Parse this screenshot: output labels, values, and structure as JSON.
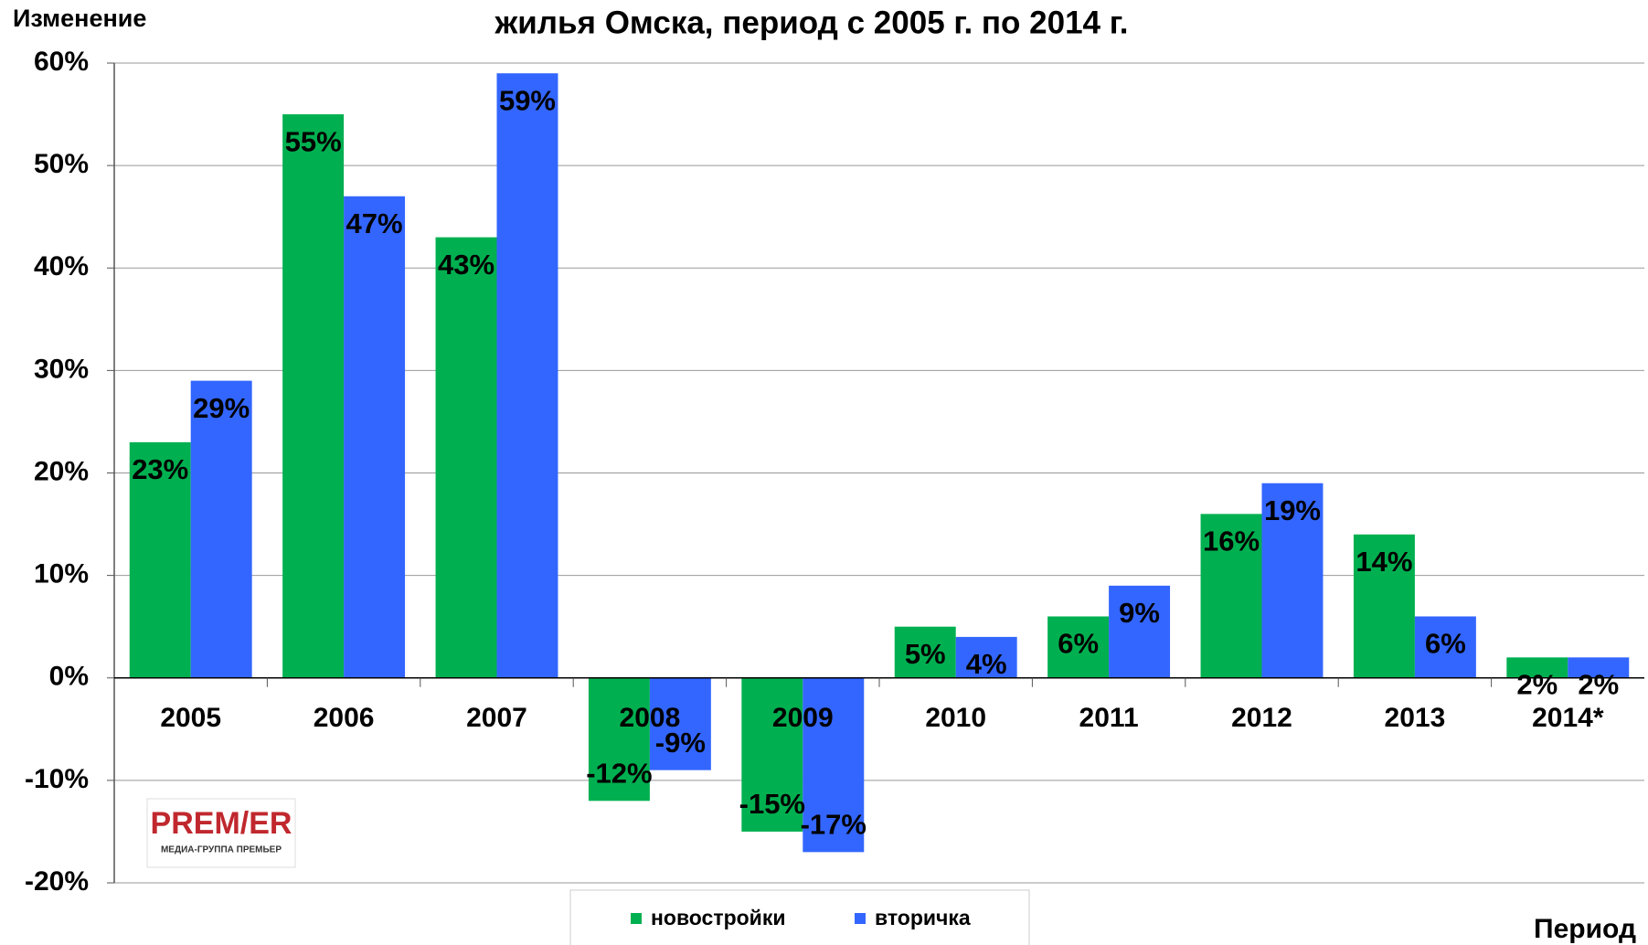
{
  "chart_data": {
    "type": "bar",
    "title": "жилья Омска, период с 2005 г. по 2014 г.",
    "y_label": "Изменение",
    "x_label": "Период",
    "categories": [
      "2005",
      "2006",
      "2007",
      "2008",
      "2009",
      "2010",
      "2011",
      "2012",
      "2013",
      "2014*"
    ],
    "series": [
      {
        "name": "новостройки",
        "color": "#00b050",
        "values": [
          23,
          55,
          43,
          -12,
          -15,
          5,
          6,
          16,
          14,
          2
        ],
        "value_labels": [
          "23%",
          "55%",
          "43%",
          "-12%",
          "-15%",
          "5%",
          "6%",
          "16%",
          "14%",
          "2%"
        ]
      },
      {
        "name": "вторичка",
        "color": "#3366ff",
        "values": [
          29,
          47,
          59,
          -9,
          -17,
          4,
          9,
          19,
          6,
          2
        ],
        "value_labels": [
          "29%",
          "47%",
          "59%",
          "-9%",
          "-17%",
          "4%",
          "9%",
          "19%",
          "6%",
          "2%"
        ]
      }
    ],
    "ylim": [
      -20,
      60
    ],
    "yticks": [
      {
        "value": -20,
        "label": "-20%"
      },
      {
        "value": -10,
        "label": "-10%"
      },
      {
        "value": 0,
        "label": "0%"
      },
      {
        "value": 10,
        "label": "10%"
      },
      {
        "value": 20,
        "label": "20%"
      },
      {
        "value": 30,
        "label": "30%"
      },
      {
        "value": 40,
        "label": "40%"
      },
      {
        "value": 50,
        "label": "50%"
      },
      {
        "value": 60,
        "label": "60%"
      }
    ],
    "grid": true,
    "legend": "bottom"
  },
  "logo": {
    "title": "PREM/ER",
    "subtitle": "МЕДИА-ГРУППА ПРЕМЬЕР"
  }
}
